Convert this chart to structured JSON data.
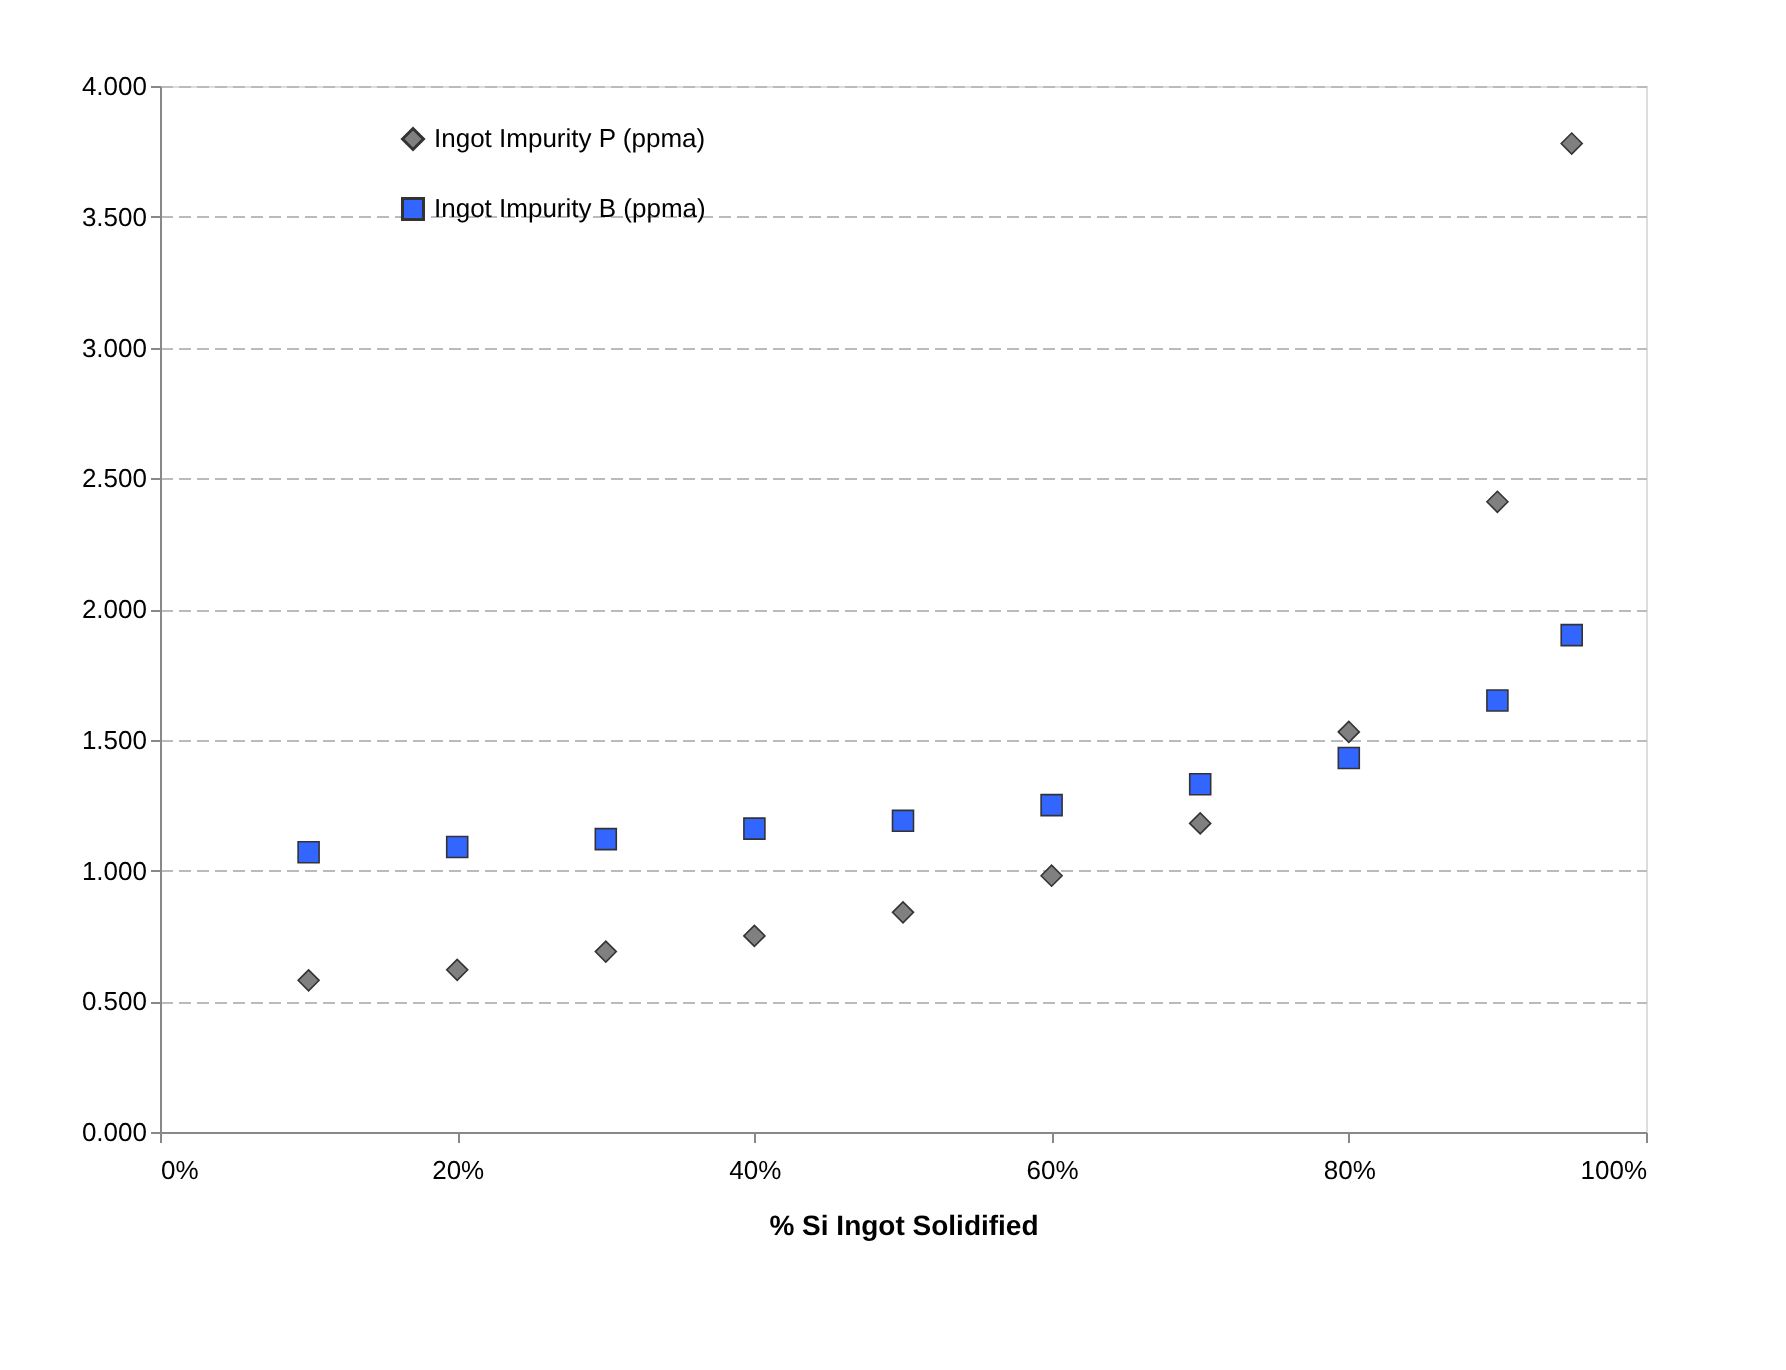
{
  "chart_data": {
    "type": "scatter",
    "xlabel": "% Si Ingot Solidified",
    "x": [
      10,
      20,
      30,
      40,
      50,
      60,
      70,
      80,
      90,
      95
    ],
    "series": [
      {
        "name": "Ingot Impurity P (ppma)",
        "color": "#808080",
        "marker": "diamond",
        "values": [
          0.58,
          0.62,
          0.69,
          0.75,
          0.84,
          0.98,
          1.18,
          1.53,
          2.41,
          3.78
        ]
      },
      {
        "name": "Ingot Impurity B (ppma)",
        "color": "#3366ff",
        "marker": "square",
        "values": [
          1.07,
          1.09,
          1.12,
          1.16,
          1.19,
          1.25,
          1.33,
          1.43,
          1.65,
          1.9
        ]
      }
    ],
    "xlim": [
      0,
      100
    ],
    "xticks": [
      {
        "value": 0,
        "label": "0%"
      },
      {
        "value": 20,
        "label": "20%"
      },
      {
        "value": 40,
        "label": "40%"
      },
      {
        "value": 60,
        "label": "60%"
      },
      {
        "value": 80,
        "label": "80%"
      },
      {
        "value": 100,
        "label": "100%"
      }
    ],
    "ylim": [
      0,
      4
    ],
    "yticks": [
      {
        "value": 0,
        "label": "0.000"
      },
      {
        "value": 0.5,
        "label": "0.500"
      },
      {
        "value": 1,
        "label": "1.000"
      },
      {
        "value": 1.5,
        "label": "1.500"
      },
      {
        "value": 2,
        "label": "2.000"
      },
      {
        "value": 2.5,
        "label": "2.500"
      },
      {
        "value": 3,
        "label": "3.000"
      },
      {
        "value": 3.5,
        "label": "3.500"
      },
      {
        "value": 4,
        "label": "4.000"
      }
    ],
    "grid": "y",
    "legend": "top left"
  }
}
